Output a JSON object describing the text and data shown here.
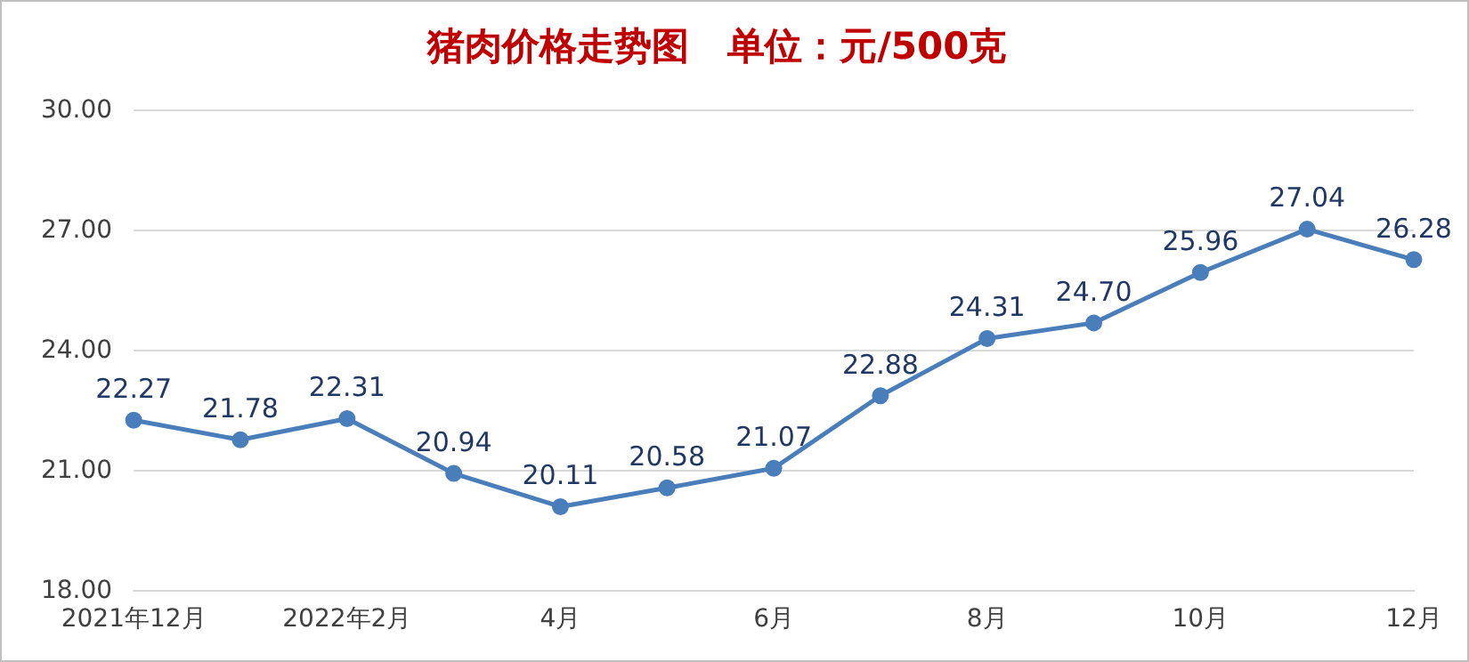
{
  "chart_data": {
    "type": "line",
    "title": "猪肉价格走势图   单位：元/500克",
    "categories": [
      "2021年12月",
      null,
      "2022年2月",
      null,
      "4月",
      null,
      "6月",
      null,
      "8月",
      null,
      "10月",
      null,
      "12月"
    ],
    "series": [
      {
        "color": "#4a7ebb",
        "values": [
          22.27,
          21.78,
          22.31,
          20.94,
          20.11,
          20.58,
          21.07,
          22.88,
          24.31,
          24.7,
          25.96,
          27.04,
          26.28
        ],
        "value_labels": [
          "22.27",
          "21.78",
          "22.31",
          "20.94",
          "20.11",
          "20.58",
          "21.07",
          "22.88",
          "24.31",
          "24.70",
          "25.96",
          "27.04",
          "26.28"
        ]
      }
    ],
    "ylim": [
      18,
      30
    ],
    "yticks": [
      {
        "value": 18,
        "label": "18.00"
      },
      {
        "value": 21,
        "label": "21.00"
      },
      {
        "value": 24,
        "label": "24.00"
      },
      {
        "value": 27,
        "label": "27.00"
      },
      {
        "value": 30,
        "label": "30.00"
      }
    ],
    "grid": "y",
    "legend": false,
    "marker": "circle",
    "line_style": "solid"
  }
}
